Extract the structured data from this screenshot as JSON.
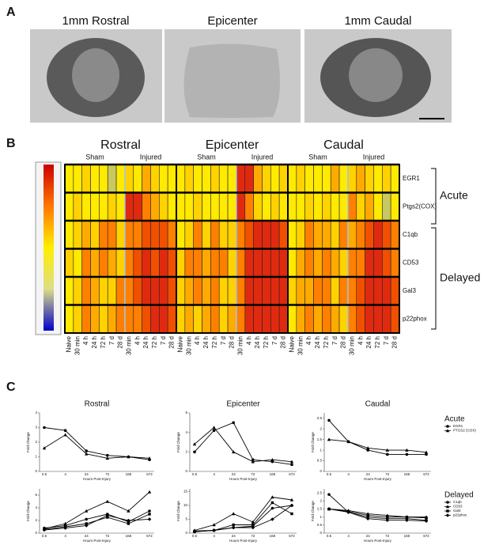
{
  "panels": {
    "a": "A",
    "b": "B",
    "c": "C"
  },
  "sections": {
    "titles": [
      "1mm Rostral",
      "Epicenter",
      "1mm Caudal"
    ]
  },
  "heatmap": {
    "regions": [
      {
        "title": "Rostral",
        "groups": [
          "Sham",
          "Injured"
        ],
        "columns": [
          "Naive",
          "30 min",
          "4 h",
          "24 h",
          "72 h",
          "7 d",
          "28 d",
          "30 min",
          "4 h",
          "24 h",
          "72 h",
          "7 d",
          "28 d"
        ]
      },
      {
        "title": "Epicenter",
        "groups": [
          "Sham",
          "Injured"
        ],
        "columns": [
          "Naive",
          "30 min",
          "4 h",
          "24 h",
          "72 h",
          "7 d",
          "28 d",
          "30 min",
          "4 h",
          "24 h",
          "72 h",
          "7 d",
          "28 d"
        ]
      },
      {
        "title": "Caudal",
        "groups": [
          "Sham",
          "Injured"
        ],
        "columns": [
          "Naive",
          "30 min",
          "4 h",
          "24 h",
          "72 h",
          "7 d",
          "28 d",
          "30 min",
          "4 h",
          "24 h",
          "72 h",
          "7 d",
          "28 d"
        ]
      }
    ],
    "row_groups": [
      "Acute",
      "Delayed"
    ],
    "rows": [
      {
        "label": "EGR1",
        "colors": [
          "#ffea00",
          "#ffea00",
          "#ffd200",
          "#ffea00",
          "#ffea00",
          "#c8c860",
          "#ffea00",
          "#ffd200",
          "#ffea00",
          "#ffaa00",
          "#ffd200",
          "#ffea00",
          "#ffea00",
          "#ffea00",
          "#ffd200",
          "#ffea00",
          "#ffea00",
          "#ffd200",
          "#ffea00",
          "#ffea00",
          "#e02a10",
          "#e02a10",
          "#ffaa00",
          "#ffd200",
          "#ffea00",
          "#ffd200",
          "#ffea00",
          "#ffd200",
          "#ffea00",
          "#ffea00",
          "#ffea00",
          "#ffaa00",
          "#ffea00",
          "#ffd200",
          "#ffaa00",
          "#ffd200",
          "#ffea00",
          "#ffd200",
          "#ffea00"
        ]
      },
      {
        "label": "Ptgs2(COX)",
        "colors": [
          "#ffea00",
          "#ffd200",
          "#ffea00",
          "#ffea00",
          "#ffea00",
          "#ffd200",
          "#ffea00",
          "#e02a10",
          "#e02a10",
          "#ff8000",
          "#ffaa00",
          "#ffd200",
          "#ffea00",
          "#ffea00",
          "#ffea00",
          "#ffd200",
          "#ffea00",
          "#ffea00",
          "#ffea00",
          "#ffea00",
          "#e02a10",
          "#ff8000",
          "#ffd200",
          "#ffea00",
          "#ffd200",
          "#ffea00",
          "#ffea00",
          "#ffea00",
          "#ffd200",
          "#ffea00",
          "#ffd200",
          "#ffea00",
          "#ffea00",
          "#ff8000",
          "#ffd200",
          "#ffaa00",
          "#ffea00",
          "#c8c860",
          "#ffea00"
        ]
      },
      {
        "label": "C1qb",
        "colors": [
          "#ffea00",
          "#ffd200",
          "#ffaa00",
          "#ffd200",
          "#ff8000",
          "#ff8000",
          "#ffd200",
          "#ff8000",
          "#ff8000",
          "#f05000",
          "#f05000",
          "#f05000",
          "#ff8000",
          "#ffea00",
          "#ffd200",
          "#ff8000",
          "#ffd200",
          "#ff8000",
          "#ffd200",
          "#ffd200",
          "#ff8000",
          "#f05000",
          "#e02a10",
          "#e02a10",
          "#e02a10",
          "#f05000",
          "#ffea00",
          "#ffd200",
          "#ff8000",
          "#ffaa00",
          "#ffaa00",
          "#ffd200",
          "#ff8000",
          "#ffaa00",
          "#ff8000",
          "#f05000",
          "#e02a10",
          "#f05000",
          "#ff8000"
        ]
      },
      {
        "label": "CD53",
        "colors": [
          "#ffd200",
          "#ffea00",
          "#ff8000",
          "#ffaa00",
          "#ff8000",
          "#ffaa00",
          "#ffd200",
          "#ff8000",
          "#f05000",
          "#e02a10",
          "#f05000",
          "#e02a10",
          "#f05000",
          "#ffd200",
          "#ff8000",
          "#ff8000",
          "#ffaa00",
          "#ff8000",
          "#ff8000",
          "#ffd200",
          "#ff8000",
          "#e02a10",
          "#e02a10",
          "#e02a10",
          "#e02a10",
          "#e02a10",
          "#ffea00",
          "#ffaa00",
          "#ff8000",
          "#ffaa00",
          "#ff8000",
          "#ffaa00",
          "#ffd200",
          "#ff8000",
          "#ff8000",
          "#e02a10",
          "#e02a10",
          "#f05000",
          "#ff8000"
        ]
      },
      {
        "label": "Gal3",
        "colors": [
          "#ffea00",
          "#ffd200",
          "#ff8000",
          "#ffaa00",
          "#ffd200",
          "#ffd200",
          "#ff8000",
          "#ff8000",
          "#f05000",
          "#e02a10",
          "#e02a10",
          "#e02a10",
          "#f05000",
          "#ffd200",
          "#ffaa00",
          "#ff8000",
          "#ffaa00",
          "#ff8000",
          "#ffd200",
          "#ffd200",
          "#ff8000",
          "#e02a10",
          "#e02a10",
          "#e02a10",
          "#e02a10",
          "#e02a10",
          "#ffd200",
          "#ffaa00",
          "#ffaa00",
          "#ff8000",
          "#ff8000",
          "#ffd200",
          "#ff8000",
          "#ff8000",
          "#f05000",
          "#e02a10",
          "#e02a10",
          "#e02a10",
          "#f05000"
        ]
      },
      {
        "label": "p22phox",
        "colors": [
          "#ffea00",
          "#ffd200",
          "#ff8000",
          "#ffaa00",
          "#ffd200",
          "#ffaa00",
          "#ff8000",
          "#ff8000",
          "#ff8000",
          "#f05000",
          "#e02a10",
          "#e02a10",
          "#f05000",
          "#ffd200",
          "#ffaa00",
          "#ffd200",
          "#ffaa00",
          "#ff8000",
          "#ffd200",
          "#ffaa00",
          "#ff8000",
          "#e02a10",
          "#e02a10",
          "#e02a10",
          "#e02a10",
          "#e02a10",
          "#ffea00",
          "#ffaa00",
          "#ff8000",
          "#ffaa00",
          "#ff8000",
          "#ffaa00",
          "#ffd200",
          "#ff8000",
          "#f05000",
          "#e02a10",
          "#e02a10",
          "#e02a10",
          "#f05000"
        ]
      }
    ]
  },
  "chart_data": [
    {
      "type": "line",
      "title": "Rostral",
      "ylabel": "Fold Change",
      "xlabel": "Hours Post-Injury",
      "categories": [
        "0.5",
        "4",
        "24",
        "72",
        "168",
        "672"
      ],
      "ylim": [
        0,
        4
      ],
      "yticks": [
        0,
        1,
        2,
        3,
        4
      ],
      "series": [
        {
          "color": "#000000",
          "marker": "circle",
          "values": [
            3.0,
            2.8,
            1.4,
            1.1,
            1.0,
            0.8
          ]
        },
        {
          "color": "#000000",
          "marker": "triangle",
          "values": [
            1.6,
            2.5,
            1.2,
            0.9,
            1.0,
            0.9
          ]
        }
      ]
    },
    {
      "type": "line",
      "title": "Epicenter",
      "ylabel": "Fold Change",
      "xlabel": "Hours Post-Injury",
      "categories": [
        "0.5",
        "4",
        "24",
        "72",
        "168",
        "672"
      ],
      "ylim": [
        0,
        6
      ],
      "yticks": [
        0,
        2,
        4,
        6
      ],
      "series": [
        {
          "color": "#000000",
          "marker": "circle",
          "values": [
            2.0,
            4.2,
            5.0,
            1.2,
            1.0,
            0.7
          ]
        },
        {
          "color": "#000000",
          "marker": "triangle",
          "values": [
            2.8,
            4.5,
            2.0,
            1.0,
            1.2,
            1.0
          ]
        }
      ]
    },
    {
      "type": "line",
      "title": "Caudal",
      "ylabel": "Fold Change",
      "xlabel": "Hours Post-Injury",
      "categories": [
        "0.5",
        "4",
        "24",
        "72",
        "168",
        "672"
      ],
      "ylim": [
        0,
        2.75
      ],
      "yticks": [
        0,
        0.5,
        1,
        1.5,
        2,
        2.5
      ],
      "legend_title": "Acute",
      "series": [
        {
          "name": "EGR1",
          "color": "#000000",
          "marker": "circle",
          "values": [
            2.4,
            1.4,
            1.0,
            0.8,
            0.8,
            0.8
          ]
        },
        {
          "name": "PTGS2 (COX)",
          "color": "#000000",
          "marker": "triangle",
          "values": [
            1.5,
            1.4,
            1.1,
            1.0,
            1.0,
            0.9
          ]
        }
      ]
    },
    {
      "type": "line",
      "ylabel": "Fold Change",
      "xlabel": "Hours Post-Injury",
      "categories": [
        "0.5",
        "4",
        "24",
        "72",
        "168",
        "672"
      ],
      "ylim": [
        0,
        7
      ],
      "yticks": [
        0,
        2,
        4,
        6
      ],
      "series": [
        {
          "color": "#000000",
          "marker": "circle",
          "values": [
            0.8,
            1.2,
            2.2,
            3.0,
            1.8,
            3.5
          ]
        },
        {
          "color": "#000000",
          "marker": "triangle",
          "values": [
            0.7,
            1.5,
            3.5,
            5.0,
            3.5,
            6.5
          ]
        },
        {
          "color": "#000000",
          "marker": "square",
          "values": [
            0.6,
            1.0,
            1.5,
            2.5,
            1.5,
            3.0
          ]
        },
        {
          "color": "#000000",
          "marker": "diamond",
          "values": [
            0.5,
            0.8,
            1.2,
            2.8,
            2.0,
            2.2
          ]
        }
      ]
    },
    {
      "type": "line",
      "ylabel": "Fold Change",
      "xlabel": "Hours Post-Injury",
      "categories": [
        "0.5",
        "4",
        "24",
        "72",
        "168",
        "672"
      ],
      "ylim": [
        0,
        16
      ],
      "yticks": [
        0,
        5,
        10,
        15
      ],
      "series": [
        {
          "color": "#000000",
          "marker": "circle",
          "values": [
            0.8,
            1.0,
            2.0,
            2.5,
            9.0,
            10.0
          ]
        },
        {
          "color": "#000000",
          "marker": "triangle",
          "values": [
            1.0,
            3.0,
            7.0,
            4.0,
            13.0,
            12.0
          ]
        },
        {
          "color": "#000000",
          "marker": "square",
          "values": [
            0.5,
            1.0,
            3.0,
            3.0,
            11.0,
            7.0
          ]
        },
        {
          "color": "#000000",
          "marker": "diamond",
          "values": [
            0.5,
            1.0,
            2.0,
            2.0,
            5.0,
            10.0
          ]
        }
      ]
    },
    {
      "type": "line",
      "ylabel": "Fold Change",
      "xlabel": "Hours Post-Injury",
      "categories": [
        "0.5",
        "4",
        "24",
        "72",
        "168",
        "672"
      ],
      "ylim": [
        0,
        2.75
      ],
      "yticks": [
        0,
        0.5,
        1,
        1.5,
        2,
        2.5
      ],
      "legend_title": "Delayed",
      "series": [
        {
          "name": "C1qb",
          "color": "#000000",
          "marker": "circle",
          "values": [
            2.4,
            1.3,
            1.0,
            0.9,
            0.9,
            0.8
          ]
        },
        {
          "name": "CD53",
          "color": "#000000",
          "marker": "triangle",
          "values": [
            1.5,
            1.4,
            1.2,
            1.1,
            1.0,
            1.0
          ]
        },
        {
          "name": "Gal3",
          "color": "#000000",
          "marker": "square",
          "values": [
            1.5,
            1.35,
            1.1,
            1.0,
            1.0,
            0.95
          ]
        },
        {
          "name": "p22phox",
          "color": "#000000",
          "marker": "diamond",
          "values": [
            1.5,
            1.3,
            0.9,
            0.8,
            0.8,
            0.75
          ]
        }
      ]
    }
  ]
}
